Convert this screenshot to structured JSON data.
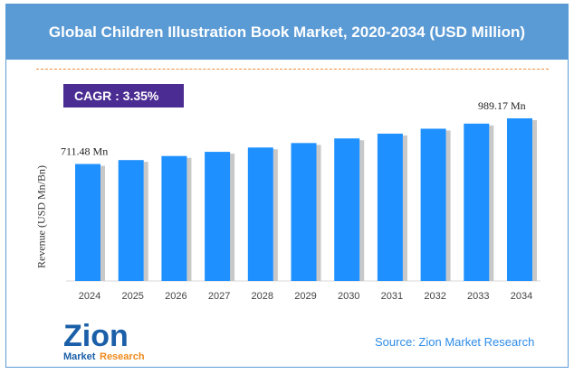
{
  "title": "Global Children Illustration Book Market, 2020-2034 (USD Million)",
  "cagr": "CAGR : 3.35%",
  "source": "Source: Zion Market Research",
  "logo": {
    "text1": "Zion",
    "text2": "Market",
    "text3": "Research"
  },
  "chart_data": {
    "type": "bar",
    "title": "Global Children Illustration Book Market, 2020-2034 (USD Million)",
    "ylabel": "Revenue (USD Mn/Bn)",
    "categories": [
      "2024",
      "2025",
      "2026",
      "2027",
      "2028",
      "2029",
      "2030",
      "2031",
      "2032",
      "2033",
      "2034"
    ],
    "values": [
      711.48,
      735.3,
      760.0,
      785.4,
      811.7,
      838.9,
      867.0,
      896.1,
      926.1,
      957.1,
      989.17
    ],
    "data_labels": {
      "first": "711.48 Mn",
      "last": "989.17 Mn"
    },
    "ylim": [
      0,
      1000
    ],
    "grid": false,
    "colors": {
      "bar": "#1e90ff",
      "header": "#5b9bd5",
      "cagr_bg": "#4b2c92",
      "source": "#2e8ce8"
    }
  }
}
